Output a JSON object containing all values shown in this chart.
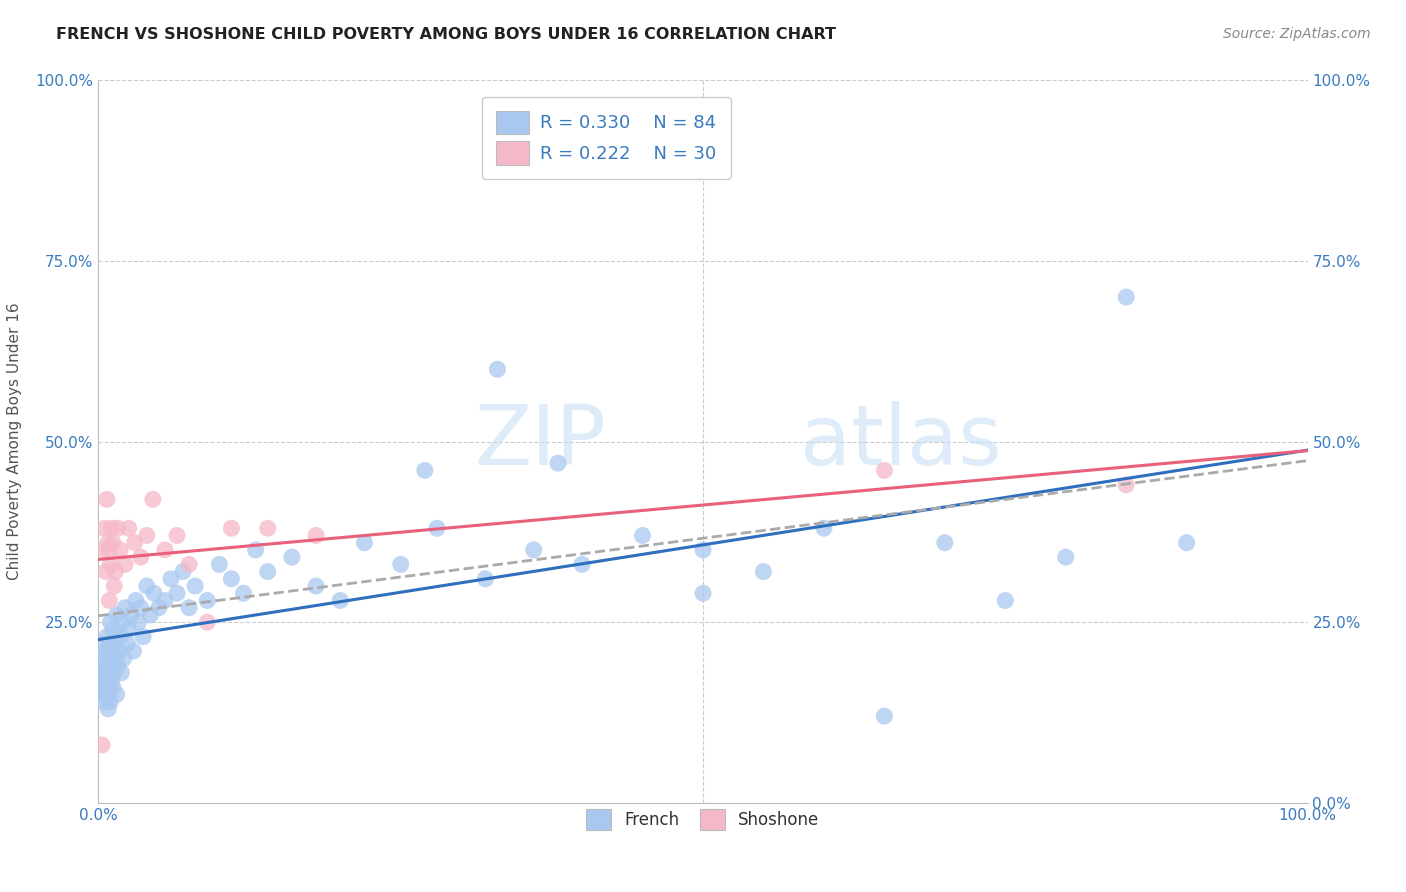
{
  "title": "FRENCH VS SHOSHONE CHILD POVERTY AMONG BOYS UNDER 16 CORRELATION CHART",
  "source": "Source: ZipAtlas.com",
  "ylabel": "Child Poverty Among Boys Under 16",
  "french_R": 0.33,
  "french_N": 84,
  "shoshone_R": 0.222,
  "shoshone_N": 30,
  "french_color": "#a8c8f0",
  "shoshone_color": "#f5b8c8",
  "trend_french_color": "#2e6fbe",
  "trend_shoshone_color": "#e8607a",
  "trend_dashed_color": "#aaaaaa",
  "french_x": [
    0.002,
    0.003,
    0.004,
    0.004,
    0.005,
    0.005,
    0.005,
    0.006,
    0.006,
    0.006,
    0.007,
    0.007,
    0.007,
    0.008,
    0.008,
    0.008,
    0.009,
    0.009,
    0.01,
    0.01,
    0.01,
    0.011,
    0.011,
    0.012,
    0.012,
    0.013,
    0.013,
    0.014,
    0.015,
    0.015,
    0.016,
    0.017,
    0.018,
    0.019,
    0.02,
    0.021,
    0.022,
    0.024,
    0.025,
    0.027,
    0.029,
    0.031,
    0.033,
    0.035,
    0.037,
    0.04,
    0.043,
    0.046,
    0.05,
    0.055,
    0.06,
    0.065,
    0.07,
    0.075,
    0.08,
    0.09,
    0.1,
    0.11,
    0.12,
    0.13,
    0.14,
    0.16,
    0.18,
    0.2,
    0.22,
    0.25,
    0.28,
    0.32,
    0.36,
    0.4,
    0.45,
    0.5,
    0.55,
    0.6,
    0.65,
    0.7,
    0.75,
    0.8,
    0.85,
    0.9,
    0.27,
    0.33,
    0.38,
    0.5
  ],
  "french_y": [
    0.18,
    0.15,
    0.17,
    0.2,
    0.14,
    0.18,
    0.22,
    0.16,
    0.19,
    0.21,
    0.15,
    0.18,
    0.23,
    0.17,
    0.2,
    0.13,
    0.16,
    0.22,
    0.14,
    0.19,
    0.25,
    0.17,
    0.21,
    0.16,
    0.24,
    0.18,
    0.22,
    0.2,
    0.15,
    0.26,
    0.19,
    0.21,
    0.23,
    0.18,
    0.25,
    0.2,
    0.27,
    0.22,
    0.24,
    0.26,
    0.21,
    0.28,
    0.25,
    0.27,
    0.23,
    0.3,
    0.26,
    0.29,
    0.27,
    0.28,
    0.31,
    0.29,
    0.32,
    0.27,
    0.3,
    0.28,
    0.33,
    0.31,
    0.29,
    0.35,
    0.32,
    0.34,
    0.3,
    0.28,
    0.36,
    0.33,
    0.38,
    0.31,
    0.35,
    0.33,
    0.37,
    0.35,
    0.32,
    0.38,
    0.12,
    0.36,
    0.28,
    0.34,
    0.7,
    0.36,
    0.46,
    0.6,
    0.47,
    0.29
  ],
  "shoshone_x": [
    0.003,
    0.004,
    0.005,
    0.006,
    0.007,
    0.008,
    0.009,
    0.009,
    0.01,
    0.011,
    0.012,
    0.013,
    0.014,
    0.016,
    0.018,
    0.022,
    0.025,
    0.03,
    0.035,
    0.04,
    0.045,
    0.055,
    0.065,
    0.075,
    0.09,
    0.11,
    0.14,
    0.18,
    0.65,
    0.85
  ],
  "shoshone_y": [
    0.08,
    0.35,
    0.38,
    0.32,
    0.42,
    0.36,
    0.28,
    0.35,
    0.33,
    0.38,
    0.36,
    0.3,
    0.32,
    0.38,
    0.35,
    0.33,
    0.38,
    0.36,
    0.34,
    0.37,
    0.42,
    0.35,
    0.37,
    0.33,
    0.25,
    0.38,
    0.38,
    0.37,
    0.46,
    0.44
  ],
  "xlim": [
    0.0,
    1.0
  ],
  "ylim": [
    0.0,
    1.0
  ],
  "xticks_left": [
    0.0
  ],
  "xticks_right": [
    1.0
  ],
  "yticks": [
    0.0,
    0.25,
    0.5,
    0.75,
    1.0
  ],
  "left_yticklabels": [
    "",
    "25.0%",
    "50.0%",
    "75.0%",
    "100.0%"
  ],
  "right_yticklabels": [
    "0.0%",
    "25.0%",
    "50.0%",
    "75.0%",
    "100.0%"
  ],
  "title_fontsize": 11.5,
  "source_fontsize": 10,
  "tick_fontsize": 11,
  "legend_fontsize": 13,
  "watermark_fontsize": 60
}
